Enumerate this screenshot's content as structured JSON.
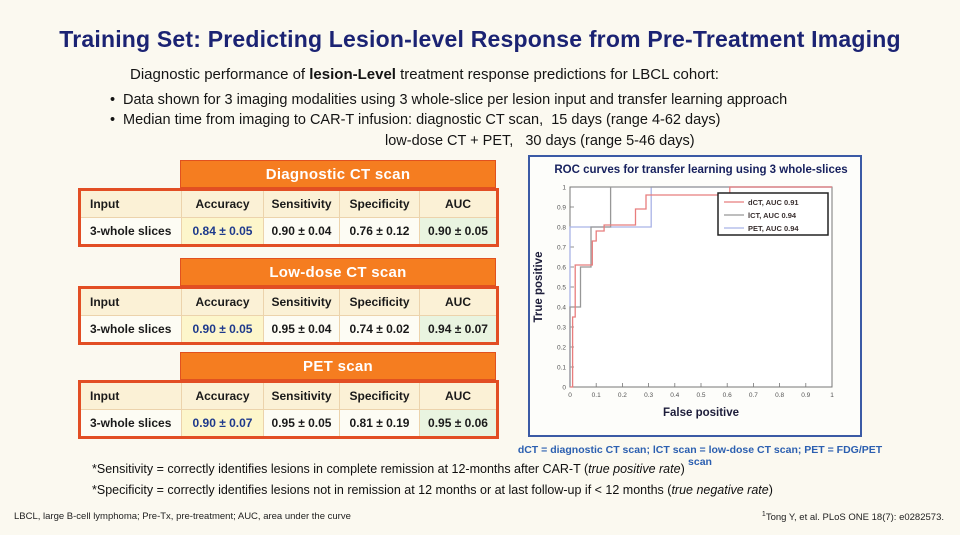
{
  "slide": {
    "title": "Training Set: Predicting Lesion-level Response from Pre-Treatment Imaging",
    "intro": {
      "line1_prefix": "Diagnostic performance of ",
      "line1_bold": "lesion-Level",
      "line1_suffix": " treatment response predictions for LBCL cohort:",
      "bullet1": "Data shown for 3 imaging modalities using 3 whole-slice per lesion input and transfer learning approach",
      "bullet2": "Median time from imaging to CAR-T infusion: diagnostic CT scan,  15 days (range 4-62 days)",
      "bullet2_cont": "low-dose CT + PET,   30 days (range 5-46 days)"
    }
  },
  "tables": [
    {
      "title": "Diagnostic CT scan",
      "columns": [
        "Input",
        "Accuracy",
        "Sensitivity",
        "Specificity",
        "AUC"
      ],
      "row": {
        "input": "3-whole slices",
        "accuracy": "0.84 ± 0.05",
        "sensitivity": "0.90 ± 0.04",
        "specificity": "0.76 ± 0.12",
        "auc": "0.90 ± 0.05"
      }
    },
    {
      "title": "Low-dose CT scan",
      "columns": [
        "Input",
        "Accuracy",
        "Sensitivity",
        "Specificity",
        "AUC"
      ],
      "row": {
        "input": "3-whole slices",
        "accuracy": "0.90 ± 0.05",
        "sensitivity": "0.95 ± 0.04",
        "specificity": "0.74 ± 0.02",
        "auc": "0.94 ± 0.07"
      }
    },
    {
      "title": "PET scan",
      "columns": [
        "Input",
        "Accuracy",
        "Sensitivity",
        "Specificity",
        "AUC"
      ],
      "row": {
        "input": "3-whole slices",
        "accuracy": "0.90 ± 0.07",
        "sensitivity": "0.95 ± 0.05",
        "specificity": "0.81 ± 0.19",
        "auc": "0.95 ± 0.06"
      }
    }
  ],
  "roc": {
    "title": "ROC curves for transfer learning using 3 whole-slices",
    "xlabel": "False positive",
    "ylabel": "True positive",
    "caption": "dCT = diagnostic CT scan; lCT scan = low-dose CT scan; PET = FDG/PET scan"
  },
  "chart_data": {
    "type": "line",
    "title": "ROC curves for transfer learning using 3 whole-slices",
    "xlabel": "False positive",
    "ylabel": "True positive",
    "xlim": [
      0,
      1
    ],
    "ylim": [
      0,
      1
    ],
    "grid": false,
    "legend_position": "top-right",
    "xticks": [
      "0",
      "0.1",
      "0.2",
      "0.3",
      "0.4",
      "0.5",
      "0.6",
      "0.7",
      "0.8",
      "0.9",
      "1"
    ],
    "yticks": [
      "0",
      "0.1",
      "0.2",
      "0.3",
      "0.4",
      "0.5",
      "0.6",
      "0.7",
      "0.8",
      "0.9",
      "1"
    ],
    "series": [
      {
        "name": "dCT",
        "label": "dCT, AUC 0.91",
        "auc": 0.91,
        "color": "#e87d7d",
        "points": [
          [
            0,
            0
          ],
          [
            0.01,
            0
          ],
          [
            0.01,
            0.35
          ],
          [
            0.02,
            0.35
          ],
          [
            0.02,
            0.61
          ],
          [
            0.085,
            0.61
          ],
          [
            0.085,
            0.73
          ],
          [
            0.1,
            0.73
          ],
          [
            0.1,
            0.78
          ],
          [
            0.13,
            0.78
          ],
          [
            0.13,
            0.81
          ],
          [
            0.25,
            0.81
          ],
          [
            0.25,
            0.89
          ],
          [
            0.29,
            0.89
          ],
          [
            0.29,
            0.96
          ],
          [
            0.61,
            0.96
          ],
          [
            0.61,
            1
          ],
          [
            1,
            1
          ]
        ]
      },
      {
        "name": "lCT",
        "label": "lCT, AUC 0.94",
        "auc": 0.94,
        "color": "#979797",
        "points": [
          [
            0,
            0
          ],
          [
            0,
            0.4
          ],
          [
            0.04,
            0.4
          ],
          [
            0.04,
            0.6
          ],
          [
            0.08,
            0.6
          ],
          [
            0.08,
            0.8
          ],
          [
            0.155,
            0.8
          ],
          [
            0.155,
            1
          ],
          [
            1,
            1
          ]
        ]
      },
      {
        "name": "PET",
        "label": "PET, AUC 0.94",
        "auc": 0.94,
        "color": "#a9b3e6",
        "points": [
          [
            0,
            0
          ],
          [
            0,
            0.8
          ],
          [
            0.31,
            0.8
          ],
          [
            0.31,
            1
          ],
          [
            1,
            1
          ]
        ]
      }
    ]
  },
  "footnotes": [
    {
      "prefix": "*Sensitivity = correctly identifies lesions in complete remission at 12-months after CAR-T (",
      "italic": "true positive rate",
      "suffix": ")"
    },
    {
      "prefix": "*Specificity = correctly identifies lesions not in remission at 12 months or at last follow-up if < 12 months (",
      "italic": "true negative rate",
      "suffix": ")"
    }
  ],
  "footer": {
    "left": "LBCL, large B-cell lymphoma; Pre-Tx, pre-treatment; AUC, area under the curve",
    "ref_sup": "1",
    "ref": "Tong Y, et al. PLoS ONE 18(7): e0282573."
  },
  "colors": {
    "background": "#fbf9f0",
    "title_navy": "#1b2373",
    "banner_orange": "#f57d20",
    "table_border": "#e24e24",
    "header_cream": "#fbf1d6",
    "accuracy_cell": "#fdf6cb",
    "accuracy_text": "#1e3a8c",
    "auc_cell": "#e9f4e0",
    "roc_border": "#3b5aa5",
    "caption_blue": "#2b5fb0"
  }
}
